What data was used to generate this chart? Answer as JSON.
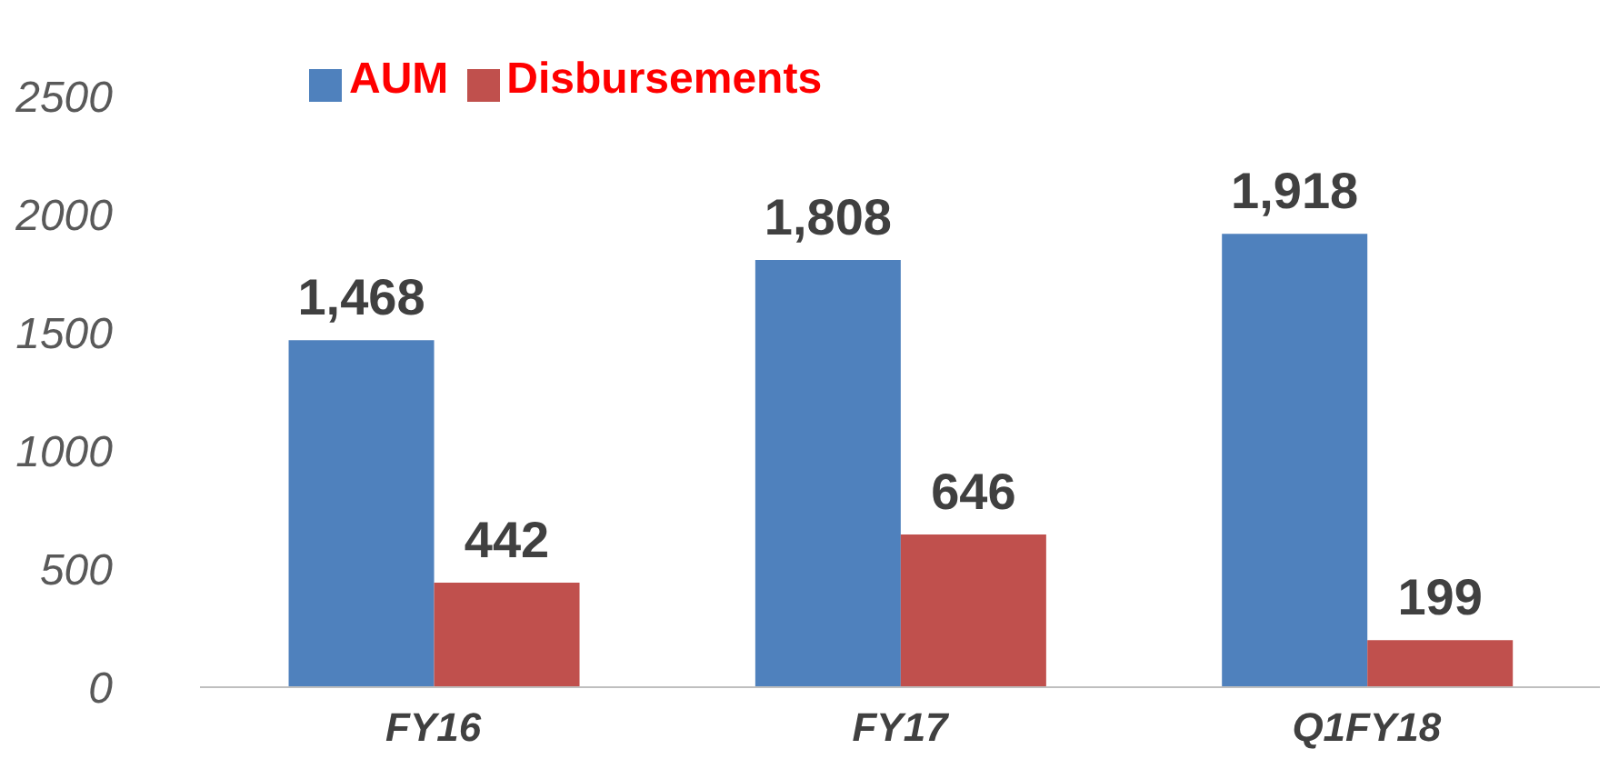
{
  "chart_data": {
    "type": "bar",
    "categories": [
      "FY16",
      "FY17",
      "Q1FY18"
    ],
    "series": [
      {
        "name": "AUM",
        "color": "#4f81bd",
        "values": [
          1468,
          1808,
          1918
        ],
        "value_labels": [
          "1,468",
          "1,808",
          "1,918"
        ]
      },
      {
        "name": "Disbursements",
        "color": "#c0504d",
        "values": [
          442,
          646,
          199
        ],
        "value_labels": [
          "442",
          "646",
          "199"
        ]
      }
    ],
    "ylim": [
      0,
      2500
    ],
    "yticks": [
      0,
      500,
      1000,
      1500,
      2000,
      2500
    ],
    "grid": false,
    "legend": "top left"
  }
}
